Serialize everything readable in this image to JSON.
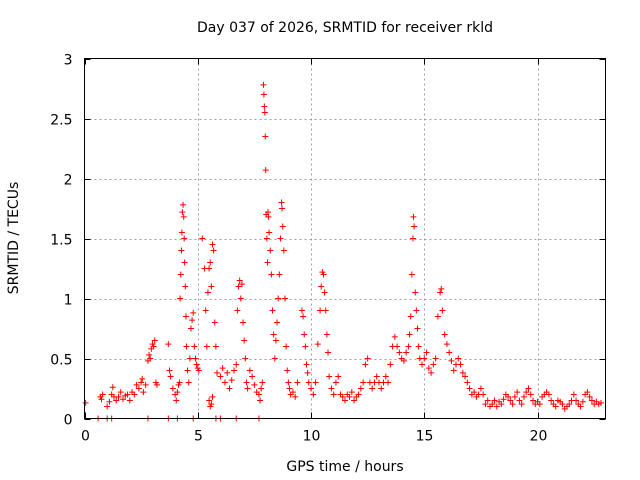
{
  "chart_data": {
    "type": "scatter",
    "title": "Day 037 of 2026, SRMTID for receiver rkld",
    "xlabel": "GPS time / hours",
    "ylabel": "SRMTID / TECUs",
    "xlim": [
      0,
      23.0
    ],
    "ylim": [
      0,
      3
    ],
    "xticks": [
      0,
      5,
      10,
      15,
      20
    ],
    "xtick_labels": [
      "0",
      "5",
      "10",
      "15",
      "20"
    ],
    "yticks": [
      0,
      0.5,
      1,
      1.5,
      2,
      2.5,
      3
    ],
    "ytick_labels": [
      "0",
      "0.5",
      "1",
      "1.5",
      "2",
      "2.5",
      "3"
    ],
    "grid": true,
    "marker": "+",
    "series": [
      {
        "name": "SRMTID",
        "color": "#ff0000",
        "points": [
          [
            0.05,
            0.13
          ],
          [
            0.7,
            0.18
          ],
          [
            0.75,
            0.16
          ],
          [
            0.8,
            0.2
          ],
          [
            1.0,
            0.1
          ],
          [
            1.1,
            0.14
          ],
          [
            1.2,
            0.2
          ],
          [
            1.25,
            0.26
          ],
          [
            1.3,
            0.18
          ],
          [
            1.4,
            0.15
          ],
          [
            1.5,
            0.18
          ],
          [
            1.6,
            0.22
          ],
          [
            1.7,
            0.16
          ],
          [
            1.8,
            0.19
          ],
          [
            1.9,
            0.2
          ],
          [
            2.0,
            0.15
          ],
          [
            2.1,
            0.22
          ],
          [
            2.2,
            0.2
          ],
          [
            2.3,
            0.28
          ],
          [
            2.4,
            0.25
          ],
          [
            2.5,
            0.3
          ],
          [
            2.55,
            0.33
          ],
          [
            2.6,
            0.22
          ],
          [
            2.7,
            0.28
          ],
          [
            2.8,
            0.48
          ],
          [
            2.85,
            0.53
          ],
          [
            2.9,
            0.5
          ],
          [
            2.95,
            0.58
          ],
          [
            3.0,
            0.62
          ],
          [
            3.05,
            0.6
          ],
          [
            3.1,
            0.65
          ],
          [
            3.15,
            0.3
          ],
          [
            3.2,
            0.28
          ],
          [
            3.7,
            0.62
          ],
          [
            3.75,
            0.4
          ],
          [
            3.8,
            0.35
          ],
          [
            3.9,
            0.25
          ],
          [
            4.0,
            0.2
          ],
          [
            4.05,
            0.15
          ],
          [
            4.1,
            0.22
          ],
          [
            4.15,
            0.28
          ],
          [
            4.2,
            0.3
          ],
          [
            4.22,
            1.0
          ],
          [
            4.25,
            1.2
          ],
          [
            4.28,
            1.4
          ],
          [
            4.3,
            1.55
          ],
          [
            4.32,
            1.72
          ],
          [
            4.35,
            1.78
          ],
          [
            4.38,
            1.68
          ],
          [
            4.4,
            1.5
          ],
          [
            4.42,
            1.3
          ],
          [
            4.45,
            1.1
          ],
          [
            4.48,
            0.85
          ],
          [
            4.5,
            0.6
          ],
          [
            4.55,
            0.4
          ],
          [
            4.6,
            0.3
          ],
          [
            4.65,
            0.5
          ],
          [
            4.7,
            0.75
          ],
          [
            4.75,
            0.82
          ],
          [
            4.8,
            0.88
          ],
          [
            4.85,
            0.6
          ],
          [
            4.9,
            0.5
          ],
          [
            4.95,
            0.45
          ],
          [
            5.0,
            0.42
          ],
          [
            5.05,
            0.4
          ],
          [
            5.2,
            1.5
          ],
          [
            5.3,
            1.25
          ],
          [
            5.35,
            0.9
          ],
          [
            5.4,
            0.6
          ],
          [
            5.45,
            1.05
          ],
          [
            5.5,
            1.25
          ],
          [
            5.55,
            1.3
          ],
          [
            5.6,
            1.1
          ],
          [
            5.65,
            1.45
          ],
          [
            5.7,
            1.4
          ],
          [
            5.75,
            0.8
          ],
          [
            5.8,
            0.6
          ],
          [
            5.85,
            0.38
          ],
          [
            5.5,
            0.15
          ],
          [
            5.55,
            0.1
          ],
          [
            5.6,
            0.12
          ],
          [
            5.65,
            0.18
          ],
          [
            6.0,
            0.35
          ],
          [
            6.1,
            0.42
          ],
          [
            6.2,
            0.3
          ],
          [
            6.3,
            0.38
          ],
          [
            6.4,
            0.25
          ],
          [
            6.5,
            0.32
          ],
          [
            6.6,
            0.4
          ],
          [
            6.7,
            0.45
          ],
          [
            6.75,
            0.9
          ],
          [
            6.8,
            1.1
          ],
          [
            6.85,
            1.15
          ],
          [
            6.9,
            1.0
          ],
          [
            6.95,
            1.12
          ],
          [
            7.0,
            0.8
          ],
          [
            7.05,
            0.65
          ],
          [
            7.1,
            0.5
          ],
          [
            7.15,
            0.3
          ],
          [
            7.2,
            0.25
          ],
          [
            7.3,
            0.4
          ],
          [
            7.4,
            0.35
          ],
          [
            7.5,
            0.28
          ],
          [
            7.6,
            0.22
          ],
          [
            7.7,
            0.2
          ],
          [
            7.75,
            0.15
          ],
          [
            7.8,
            0.25
          ],
          [
            7.85,
            0.3
          ],
          [
            7.9,
            2.78
          ],
          [
            7.92,
            2.7
          ],
          [
            7.94,
            2.6
          ],
          [
            7.96,
            2.55
          ],
          [
            7.98,
            2.35
          ],
          [
            8.0,
            2.07
          ],
          [
            8.02,
            1.7
          ],
          [
            8.05,
            1.5
          ],
          [
            8.08,
            1.3
          ],
          [
            8.1,
            1.72
          ],
          [
            8.12,
            1.68
          ],
          [
            8.15,
            1.55
          ],
          [
            8.2,
            1.4
          ],
          [
            8.25,
            1.2
          ],
          [
            8.3,
            0.9
          ],
          [
            8.35,
            0.7
          ],
          [
            8.4,
            0.5
          ],
          [
            8.45,
            0.65
          ],
          [
            8.5,
            0.8
          ],
          [
            8.55,
            1.0
          ],
          [
            8.6,
            1.2
          ],
          [
            8.65,
            1.5
          ],
          [
            8.7,
            1.8
          ],
          [
            8.72,
            1.75
          ],
          [
            8.75,
            1.6
          ],
          [
            8.8,
            1.4
          ],
          [
            8.85,
            1.0
          ],
          [
            8.9,
            0.6
          ],
          [
            8.95,
            0.4
          ],
          [
            9.0,
            0.3
          ],
          [
            9.05,
            0.25
          ],
          [
            9.1,
            0.2
          ],
          [
            9.2,
            0.22
          ],
          [
            9.3,
            0.18
          ],
          [
            9.4,
            0.3
          ],
          [
            9.6,
            0.9
          ],
          [
            9.65,
            0.85
          ],
          [
            9.7,
            0.7
          ],
          [
            9.75,
            0.6
          ],
          [
            9.8,
            0.45
          ],
          [
            9.85,
            0.38
          ],
          [
            9.9,
            0.3
          ],
          [
            10.0,
            0.25
          ],
          [
            10.1,
            0.2
          ],
          [
            10.2,
            0.3
          ],
          [
            10.3,
            0.62
          ],
          [
            10.4,
            0.9
          ],
          [
            10.45,
            1.1
          ],
          [
            10.5,
            1.22
          ],
          [
            10.55,
            1.2
          ],
          [
            10.6,
            1.05
          ],
          [
            10.65,
            0.9
          ],
          [
            10.7,
            0.7
          ],
          [
            10.75,
            0.55
          ],
          [
            10.8,
            0.35
          ],
          [
            10.9,
            0.25
          ],
          [
            11.0,
            0.2
          ],
          [
            11.1,
            0.3
          ],
          [
            11.2,
            0.35
          ],
          [
            11.3,
            0.2
          ],
          [
            11.4,
            0.18
          ],
          [
            11.5,
            0.15
          ],
          [
            11.6,
            0.2
          ],
          [
            11.7,
            0.18
          ],
          [
            11.8,
            0.22
          ],
          [
            11.9,
            0.15
          ],
          [
            12.0,
            0.18
          ],
          [
            12.1,
            0.2
          ],
          [
            12.2,
            0.25
          ],
          [
            12.3,
            0.3
          ],
          [
            12.4,
            0.45
          ],
          [
            12.5,
            0.5
          ],
          [
            12.6,
            0.3
          ],
          [
            12.7,
            0.25
          ],
          [
            12.8,
            0.3
          ],
          [
            12.9,
            0.35
          ],
          [
            13.0,
            0.3
          ],
          [
            13.1,
            0.25
          ],
          [
            13.2,
            0.3
          ],
          [
            13.3,
            0.35
          ],
          [
            13.4,
            0.3
          ],
          [
            13.5,
            0.45
          ],
          [
            13.6,
            0.6
          ],
          [
            13.7,
            0.68
          ],
          [
            13.8,
            0.6
          ],
          [
            13.9,
            0.55
          ],
          [
            14.0,
            0.5
          ],
          [
            14.1,
            0.48
          ],
          [
            14.2,
            0.55
          ],
          [
            14.3,
            0.6
          ],
          [
            14.35,
            0.7
          ],
          [
            14.4,
            0.85
          ],
          [
            14.45,
            1.2
          ],
          [
            14.5,
            1.5
          ],
          [
            14.52,
            1.68
          ],
          [
            14.55,
            1.6
          ],
          [
            14.6,
            1.05
          ],
          [
            14.65,
            0.9
          ],
          [
            14.7,
            0.75
          ],
          [
            14.75,
            0.6
          ],
          [
            14.8,
            0.5
          ],
          [
            14.9,
            0.45
          ],
          [
            15.0,
            0.5
          ],
          [
            15.1,
            0.55
          ],
          [
            15.2,
            0.42
          ],
          [
            15.3,
            0.38
          ],
          [
            15.4,
            0.45
          ],
          [
            15.5,
            0.5
          ],
          [
            15.6,
            0.85
          ],
          [
            15.7,
            1.05
          ],
          [
            15.75,
            1.08
          ],
          [
            15.8,
            0.9
          ],
          [
            15.9,
            0.7
          ],
          [
            16.0,
            0.62
          ],
          [
            16.1,
            0.55
          ],
          [
            16.2,
            0.48
          ],
          [
            16.3,
            0.4
          ],
          [
            16.4,
            0.45
          ],
          [
            16.5,
            0.5
          ],
          [
            16.6,
            0.45
          ],
          [
            16.7,
            0.38
          ],
          [
            16.8,
            0.35
          ],
          [
            16.9,
            0.3
          ],
          [
            17.0,
            0.25
          ],
          [
            17.1,
            0.2
          ],
          [
            17.2,
            0.22
          ],
          [
            17.3,
            0.18
          ],
          [
            17.4,
            0.2
          ],
          [
            17.5,
            0.25
          ],
          [
            17.6,
            0.2
          ],
          [
            17.7,
            0.12
          ],
          [
            17.8,
            0.15
          ],
          [
            17.9,
            0.1
          ],
          [
            18.0,
            0.12
          ],
          [
            18.1,
            0.15
          ],
          [
            18.2,
            0.1
          ],
          [
            18.3,
            0.14
          ],
          [
            18.4,
            0.12
          ],
          [
            18.5,
            0.16
          ],
          [
            18.6,
            0.2
          ],
          [
            18.7,
            0.18
          ],
          [
            18.8,
            0.15
          ],
          [
            18.9,
            0.12
          ],
          [
            19.0,
            0.18
          ],
          [
            19.1,
            0.22
          ],
          [
            19.2,
            0.15
          ],
          [
            19.3,
            0.12
          ],
          [
            19.4,
            0.18
          ],
          [
            19.5,
            0.22
          ],
          [
            19.6,
            0.25
          ],
          [
            19.7,
            0.2
          ],
          [
            19.8,
            0.15
          ],
          [
            19.9,
            0.12
          ],
          [
            20.0,
            0.14
          ],
          [
            20.1,
            0.12
          ],
          [
            20.2,
            0.18
          ],
          [
            20.3,
            0.2
          ],
          [
            20.4,
            0.22
          ],
          [
            20.5,
            0.2
          ],
          [
            20.6,
            0.15
          ],
          [
            20.7,
            0.12
          ],
          [
            20.8,
            0.1
          ],
          [
            20.9,
            0.15
          ],
          [
            21.0,
            0.14
          ],
          [
            21.1,
            0.12
          ],
          [
            21.2,
            0.08
          ],
          [
            21.3,
            0.1
          ],
          [
            21.4,
            0.12
          ],
          [
            21.5,
            0.15
          ],
          [
            21.6,
            0.2
          ],
          [
            21.7,
            0.15
          ],
          [
            21.8,
            0.12
          ],
          [
            21.9,
            0.1
          ],
          [
            22.0,
            0.14
          ],
          [
            22.1,
            0.2
          ],
          [
            22.2,
            0.22
          ],
          [
            22.3,
            0.18
          ],
          [
            22.4,
            0.15
          ],
          [
            22.5,
            0.12
          ],
          [
            22.6,
            0.14
          ],
          [
            22.7,
            0.12
          ],
          [
            22.8,
            0.13
          ],
          [
            0.6,
            0.0
          ],
          [
            1.0,
            0.0
          ],
          [
            1.2,
            0.0
          ],
          [
            2.8,
            0.0
          ],
          [
            3.7,
            0.0
          ],
          [
            4.1,
            0.0
          ],
          [
            4.8,
            0.0
          ],
          [
            5.8,
            0.0
          ],
          [
            6.0,
            0.0
          ],
          [
            6.7,
            0.0
          ],
          [
            7.7,
            0.0
          ]
        ]
      }
    ]
  }
}
